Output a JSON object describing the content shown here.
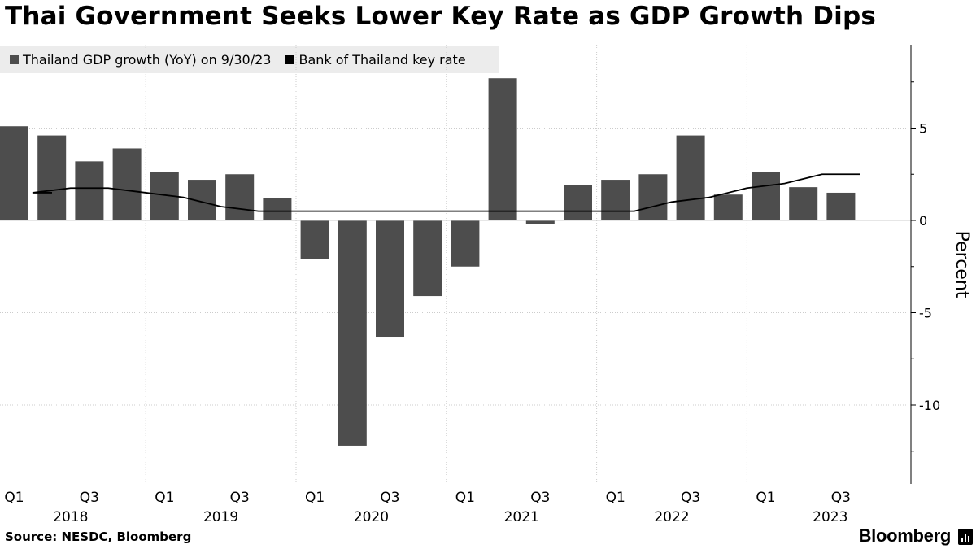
{
  "title": "Thai Government Seeks Lower Key Rate as GDP Growth Dips",
  "source": "Source: NESDC, Bloomberg",
  "brand": "Bloomberg",
  "colors": {
    "bar": "#4d4d4d",
    "line": "#000000",
    "grid": "#cccccc",
    "legend_bg": "#ececec"
  },
  "chart_data": {
    "type": "bar",
    "title": "Thai Government Seeks Lower Key Rate as GDP Growth Dips",
    "ylabel": "Percent",
    "ylim": [
      -14,
      9.5
    ],
    "yticks": [
      5,
      0,
      -5,
      -10
    ],
    "yticklabels": [
      "5",
      "0",
      "-5",
      "-10"
    ],
    "categories": [
      "Q1 2018",
      "Q2 2018",
      "Q3 2018",
      "Q4 2018",
      "Q1 2019",
      "Q2 2019",
      "Q3 2019",
      "Q4 2019",
      "Q1 2020",
      "Q2 2020",
      "Q3 2020",
      "Q4 2020",
      "Q1 2021",
      "Q2 2021",
      "Q3 2021",
      "Q4 2021",
      "Q1 2022",
      "Q2 2022",
      "Q3 2022",
      "Q4 2022",
      "Q1 2023",
      "Q2 2023",
      "Q3 2023"
    ],
    "quarter_ticks": [
      "Q1",
      "Q3",
      "Q1",
      "Q3",
      "Q1",
      "Q3",
      "Q1",
      "Q3",
      "Q1",
      "Q3",
      "Q1",
      "Q3"
    ],
    "year_labels": [
      "2018",
      "2019",
      "2020",
      "2021",
      "2022",
      "2023"
    ],
    "series": [
      {
        "name": "Thailand GDP growth (YoY) on 9/30/23",
        "kind": "bar",
        "values": [
          5.1,
          4.6,
          3.2,
          3.9,
          2.6,
          2.2,
          2.5,
          1.2,
          -2.1,
          -12.2,
          -6.3,
          -4.1,
          -2.5,
          7.7,
          -0.2,
          1.9,
          2.2,
          2.5,
          4.6,
          1.4,
          2.6,
          1.8,
          1.5
        ]
      },
      {
        "name": "Bank of Thailand key rate",
        "kind": "line",
        "points": [
          [
            0.5,
            1.5
          ],
          [
            1,
            1.5
          ],
          [
            2,
            1.75
          ],
          [
            3,
            1.75
          ],
          [
            4,
            1.5
          ],
          [
            5,
            1.25
          ],
          [
            6,
            0.75
          ],
          [
            7,
            0.5
          ],
          [
            8,
            0.5
          ],
          [
            9,
            0.5
          ],
          [
            10,
            0.5
          ],
          [
            11,
            0.5
          ],
          [
            12,
            0.5
          ],
          [
            13,
            0.5
          ],
          [
            14,
            0.5
          ],
          [
            15,
            0.5
          ],
          [
            16,
            0.5
          ],
          [
            17,
            0.5
          ],
          [
            18,
            1.0
          ],
          [
            19,
            1.25
          ],
          [
            20,
            1.75
          ],
          [
            21,
            2.0
          ],
          [
            22,
            2.5
          ],
          [
            23,
            2.5
          ]
        ]
      }
    ]
  }
}
